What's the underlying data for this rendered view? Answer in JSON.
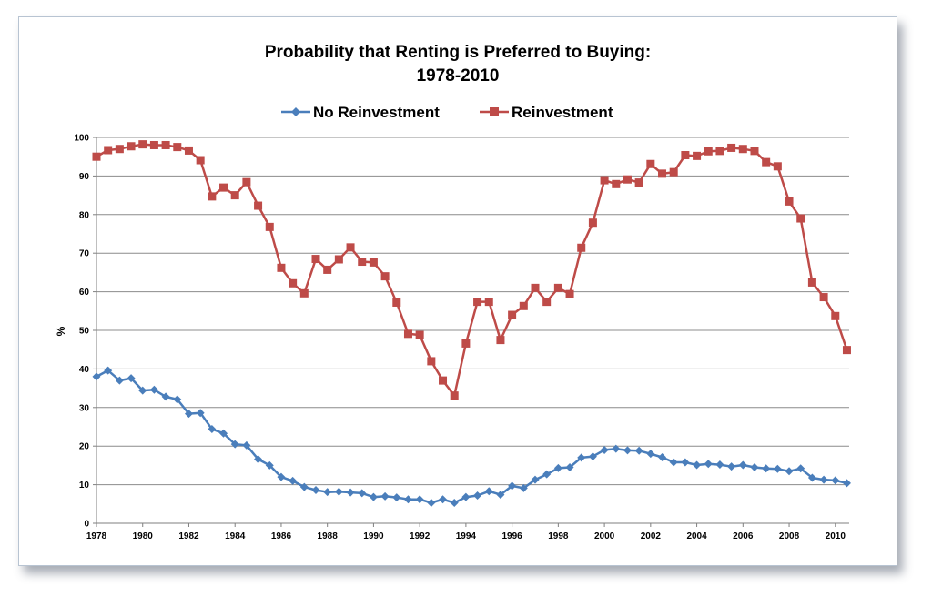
{
  "chart_data": {
    "type": "line",
    "title_lines": [
      "Probability that Renting is Preferred to Buying:",
      "1978-2010"
    ],
    "xlabel": "",
    "ylabel": "%",
    "ylim": [
      0,
      100
    ],
    "yticks": [
      0,
      10,
      20,
      30,
      40,
      50,
      60,
      70,
      80,
      90,
      100
    ],
    "xlim": [
      1978,
      2010.6
    ],
    "xticks": [
      1978,
      1980,
      1982,
      1984,
      1986,
      1988,
      1990,
      1992,
      1994,
      1996,
      1998,
      2000,
      2002,
      2004,
      2006,
      2008,
      2010
    ],
    "grid": "horizontal",
    "legend_position": "top",
    "x": [
      1978,
      1978.5,
      1979,
      1979.5,
      1980,
      1980.5,
      1981,
      1981.5,
      1982,
      1982.5,
      1983,
      1983.5,
      1984,
      1984.5,
      1985,
      1985.5,
      1986,
      1986.5,
      1987,
      1987.5,
      1988,
      1988.5,
      1989,
      1989.5,
      1990,
      1990.5,
      1991,
      1991.5,
      1992,
      1992.5,
      1993,
      1993.5,
      1994,
      1994.5,
      1995,
      1995.5,
      1996,
      1996.5,
      1997,
      1997.5,
      1998,
      1998.5,
      1999,
      1999.5,
      2000,
      2000.5,
      2001,
      2001.5,
      2002,
      2002.5,
      2003,
      2003.5,
      2004,
      2004.5,
      2005,
      2005.5,
      2006,
      2006.5,
      2007,
      2007.5,
      2008,
      2008.5,
      2009,
      2009.5,
      2010,
      2010.5
    ],
    "series": [
      {
        "name": "No Reinvestment",
        "color": "#4a7ebb",
        "marker": "diamond",
        "values": [
          38.0,
          39.6,
          37.0,
          37.6,
          34.4,
          34.6,
          32.8,
          32.1,
          28.4,
          28.6,
          24.4,
          23.3,
          20.5,
          20.2,
          16.6,
          15.0,
          12.0,
          11.0,
          9.4,
          8.6,
          8.1,
          8.2,
          8.0,
          7.8,
          6.8,
          7.0,
          6.7,
          6.2,
          6.2,
          5.3,
          6.2,
          5.3,
          6.8,
          7.2,
          8.3,
          7.4,
          9.7,
          9.1,
          11.3,
          12.7,
          14.3,
          14.5,
          17.0,
          17.3,
          19.0,
          19.3,
          18.9,
          18.8,
          18.0,
          17.1,
          15.8,
          15.8,
          15.1,
          15.4,
          15.2,
          14.7,
          15.1,
          14.5,
          14.2,
          14.1,
          13.5,
          14.2,
          11.8,
          11.3,
          11.1,
          10.4
        ]
      },
      {
        "name": "Reinvestment",
        "color": "#be4b48",
        "marker": "square",
        "values": [
          95.0,
          96.7,
          97.0,
          97.7,
          98.2,
          98.0,
          98.0,
          97.5,
          96.6,
          94.1,
          84.7,
          87.0,
          85.0,
          88.4,
          82.3,
          76.8,
          66.2,
          62.2,
          59.6,
          68.5,
          65.7,
          68.4,
          71.5,
          67.8,
          67.6,
          64.0,
          57.2,
          49.1,
          48.8,
          42.0,
          37.0,
          33.1,
          46.6,
          57.4,
          57.4,
          47.5,
          54.0,
          56.3,
          61.0,
          57.4,
          61.0,
          59.4,
          71.4,
          77.9,
          88.9,
          87.9,
          89.1,
          88.3,
          93.1,
          90.6,
          91.0,
          95.4,
          95.2,
          96.4,
          96.5,
          97.3,
          97.0,
          96.5,
          93.6,
          92.5,
          83.4,
          79.0,
          62.4,
          58.6,
          53.7,
          44.9
        ]
      }
    ]
  }
}
